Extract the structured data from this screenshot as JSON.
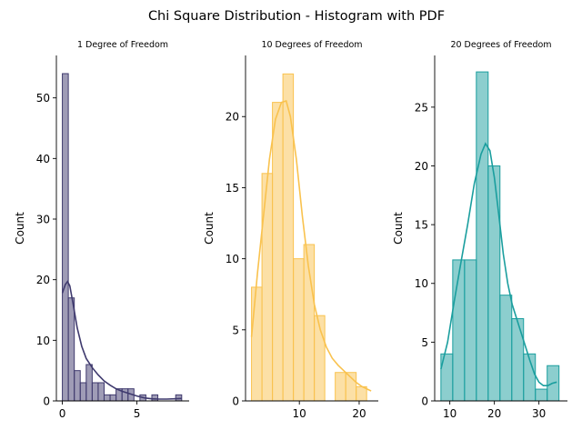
{
  "figure": {
    "title": "Chi Square Distribution - Histogram with PDF"
  },
  "chart_data": [
    {
      "type": "bar",
      "subtype": "histogram-with-kde",
      "title": "1 Degree of Freedom",
      "xlabel": "",
      "ylabel": "Count",
      "color": "#3f3a6e",
      "xlim": [
        -0.4,
        8.5
      ],
      "ylim": [
        0,
        57
      ],
      "xticks": [
        0,
        5
      ],
      "yticks": [
        0,
        10,
        20,
        30,
        40,
        50
      ],
      "bins": [
        {
          "x0": 0.0,
          "x1": 0.4,
          "count": 54
        },
        {
          "x0": 0.4,
          "x1": 0.8,
          "count": 17
        },
        {
          "x0": 0.8,
          "x1": 1.2,
          "count": 5
        },
        {
          "x0": 1.2,
          "x1": 1.6,
          "count": 3
        },
        {
          "x0": 1.6,
          "x1": 2.0,
          "count": 6
        },
        {
          "x0": 2.0,
          "x1": 2.4,
          "count": 3
        },
        {
          "x0": 2.4,
          "x1": 2.8,
          "count": 3
        },
        {
          "x0": 2.8,
          "x1": 3.2,
          "count": 1
        },
        {
          "x0": 3.2,
          "x1": 3.6,
          "count": 1
        },
        {
          "x0": 3.6,
          "x1": 4.0,
          "count": 2
        },
        {
          "x0": 4.0,
          "x1": 4.4,
          "count": 2
        },
        {
          "x0": 4.4,
          "x1": 4.8,
          "count": 2
        },
        {
          "x0": 4.8,
          "x1": 5.2,
          "count": 0
        },
        {
          "x0": 5.2,
          "x1": 5.6,
          "count": 1
        },
        {
          "x0": 5.6,
          "x1": 6.0,
          "count": 0
        },
        {
          "x0": 6.0,
          "x1": 6.4,
          "count": 1
        },
        {
          "x0": 6.4,
          "x1": 6.8,
          "count": 0
        },
        {
          "x0": 6.8,
          "x1": 7.2,
          "count": 0
        },
        {
          "x0": 7.2,
          "x1": 7.6,
          "count": 0
        },
        {
          "x0": 7.6,
          "x1": 8.0,
          "count": 1
        }
      ],
      "kde": [
        [
          0.0,
          17.8
        ],
        [
          0.2,
          19.2
        ],
        [
          0.35,
          19.7
        ],
        [
          0.5,
          19.0
        ],
        [
          0.7,
          16.3
        ],
        [
          1.0,
          12.0
        ],
        [
          1.3,
          9.0
        ],
        [
          1.6,
          7.0
        ],
        [
          2.0,
          5.5
        ],
        [
          2.4,
          4.3
        ],
        [
          2.8,
          3.3
        ],
        [
          3.2,
          2.6
        ],
        [
          3.6,
          2.0
        ],
        [
          4.0,
          1.6
        ],
        [
          4.5,
          1.2
        ],
        [
          5.0,
          0.8
        ],
        [
          5.5,
          0.5
        ],
        [
          6.0,
          0.35
        ],
        [
          6.5,
          0.3
        ],
        [
          7.0,
          0.3
        ],
        [
          7.5,
          0.35
        ],
        [
          8.0,
          0.4
        ]
      ]
    },
    {
      "type": "bar",
      "subtype": "histogram-with-kde",
      "title": "10 Degrees of Freedom",
      "xlabel": "",
      "ylabel": "Count",
      "color": "#f9c24e",
      "xlim": [
        1.0,
        23.2
      ],
      "ylim": [
        0,
        24.3
      ],
      "xticks": [
        10,
        20
      ],
      "yticks": [
        0,
        5,
        10,
        15,
        20
      ],
      "bins": [
        {
          "x0": 2.0,
          "x1": 3.75,
          "count": 8
        },
        {
          "x0": 3.75,
          "x1": 5.5,
          "count": 16
        },
        {
          "x0": 5.5,
          "x1": 7.25,
          "count": 21
        },
        {
          "x0": 7.25,
          "x1": 9.0,
          "count": 23
        },
        {
          "x0": 9.0,
          "x1": 10.75,
          "count": 10
        },
        {
          "x0": 10.75,
          "x1": 12.5,
          "count": 11
        },
        {
          "x0": 12.5,
          "x1": 14.25,
          "count": 6
        },
        {
          "x0": 14.25,
          "x1": 16.0,
          "count": 0
        },
        {
          "x0": 16.0,
          "x1": 17.75,
          "count": 2
        },
        {
          "x0": 17.75,
          "x1": 19.5,
          "count": 2
        },
        {
          "x0": 19.5,
          "x1": 21.25,
          "count": 1
        }
      ],
      "kde": [
        [
          2.0,
          4.5
        ],
        [
          3.0,
          9.0
        ],
        [
          4.0,
          13.0
        ],
        [
          5.0,
          17.0
        ],
        [
          6.0,
          19.8
        ],
        [
          7.0,
          21.0
        ],
        [
          7.8,
          21.1
        ],
        [
          8.5,
          20.0
        ],
        [
          9.5,
          17.0
        ],
        [
          10.5,
          13.0
        ],
        [
          11.5,
          9.5
        ],
        [
          12.5,
          6.8
        ],
        [
          13.5,
          5.0
        ],
        [
          14.5,
          3.8
        ],
        [
          15.5,
          3.0
        ],
        [
          16.5,
          2.5
        ],
        [
          17.5,
          2.1
        ],
        [
          18.5,
          1.7
        ],
        [
          19.5,
          1.3
        ],
        [
          20.5,
          1.0
        ],
        [
          21.5,
          0.8
        ],
        [
          22.0,
          0.7
        ]
      ]
    },
    {
      "type": "bar",
      "subtype": "histogram-with-kde",
      "title": "20 Degrees of Freedom",
      "xlabel": "",
      "ylabel": "Count",
      "color": "#1a9e9e",
      "xlim": [
        6.6,
        36.4
      ],
      "ylim": [
        0,
        29.4
      ],
      "xticks": [
        10,
        20,
        30
      ],
      "yticks": [
        0,
        5,
        10,
        15,
        20,
        25
      ],
      "bins": [
        {
          "x0": 8.0,
          "x1": 10.65,
          "count": 4
        },
        {
          "x0": 10.65,
          "x1": 13.3,
          "count": 12
        },
        {
          "x0": 13.3,
          "x1": 15.95,
          "count": 12
        },
        {
          "x0": 15.95,
          "x1": 18.6,
          "count": 28
        },
        {
          "x0": 18.6,
          "x1": 21.25,
          "count": 20
        },
        {
          "x0": 21.25,
          "x1": 23.9,
          "count": 9
        },
        {
          "x0": 23.9,
          "x1": 26.55,
          "count": 7
        },
        {
          "x0": 26.55,
          "x1": 29.2,
          "count": 4
        },
        {
          "x0": 29.2,
          "x1": 31.85,
          "count": 1
        },
        {
          "x0": 31.85,
          "x1": 34.5,
          "count": 3
        }
      ],
      "kde": [
        [
          8.0,
          2.7
        ],
        [
          9.5,
          5.0
        ],
        [
          11.0,
          8.5
        ],
        [
          12.5,
          11.8
        ],
        [
          14.0,
          15.0
        ],
        [
          15.5,
          18.5
        ],
        [
          17.0,
          21.0
        ],
        [
          18.0,
          21.9
        ],
        [
          19.0,
          21.3
        ],
        [
          20.0,
          19.0
        ],
        [
          21.0,
          15.8
        ],
        [
          22.0,
          12.5
        ],
        [
          23.0,
          10.0
        ],
        [
          24.0,
          8.2
        ],
        [
          25.0,
          7.0
        ],
        [
          26.0,
          5.8
        ],
        [
          27.0,
          4.6
        ],
        [
          28.0,
          3.4
        ],
        [
          29.0,
          2.3
        ],
        [
          30.0,
          1.6
        ],
        [
          31.0,
          1.3
        ],
        [
          32.0,
          1.3
        ],
        [
          33.0,
          1.5
        ],
        [
          34.0,
          1.6
        ]
      ]
    }
  ]
}
